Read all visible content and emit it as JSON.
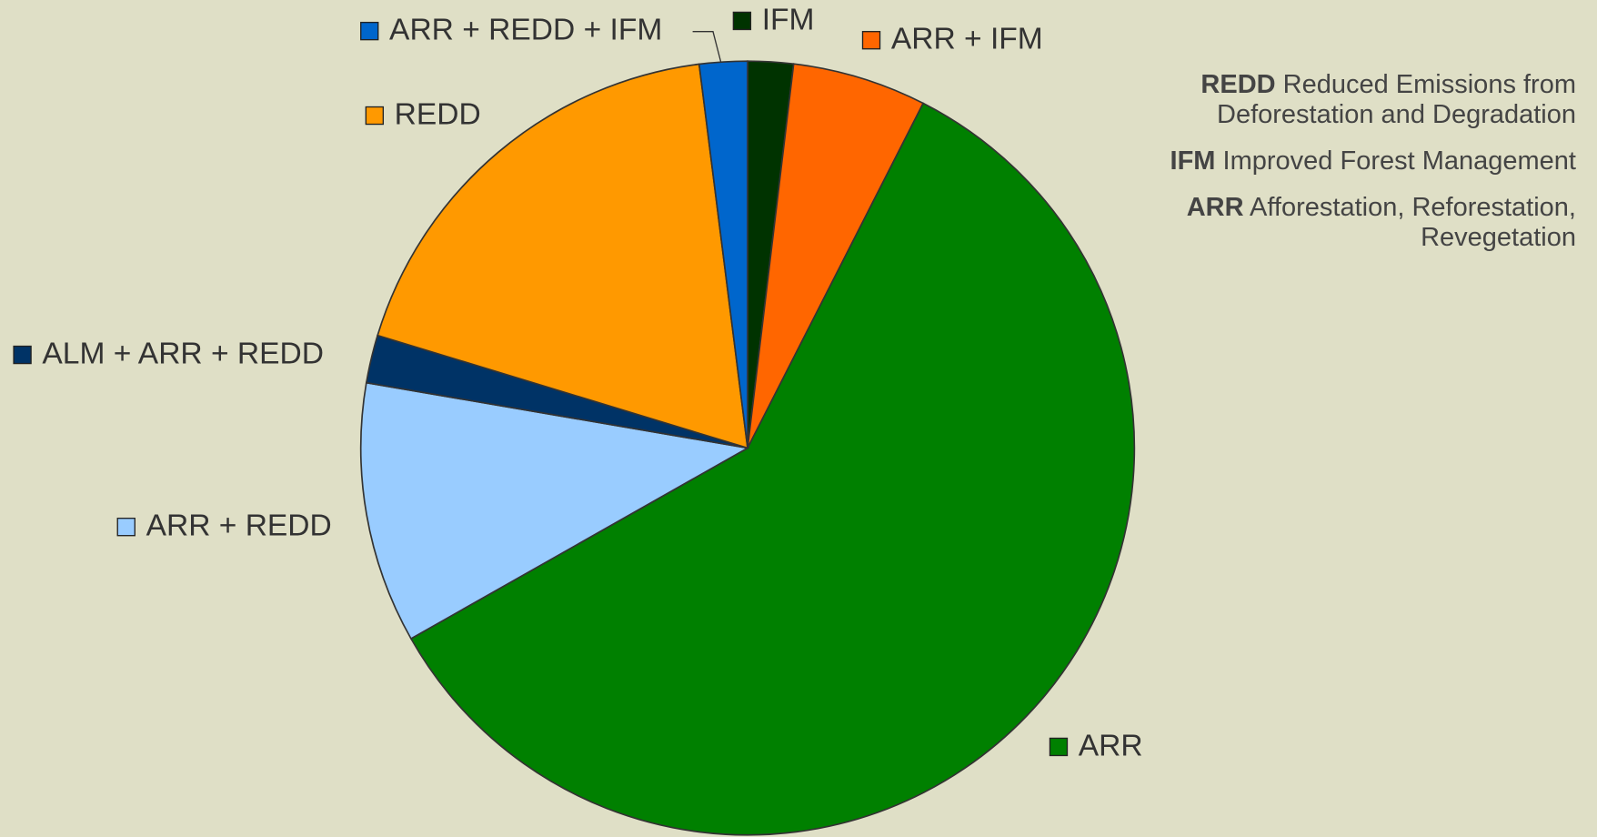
{
  "chart_data": {
    "type": "pie",
    "categories": [
      "IFM",
      "ARR + IFM",
      "ARR",
      "ARR + REDD",
      "ALM + ARR + REDD",
      "REDD",
      "ARR + REDD + IFM"
    ],
    "values": [
      1.9,
      5.6,
      59.3,
      10.9,
      2.0,
      18.3,
      2.0
    ],
    "colors": [
      "#003300",
      "#ff6600",
      "#008000",
      "#99ccff",
      "#003366",
      "#ff9900",
      "#0066cc"
    ]
  },
  "notes": [
    {
      "term": "REDD",
      "text": "Reduced Emissions from Deforestation and Degradation"
    },
    {
      "term": "IFM",
      "text": "Improved Forest Management"
    },
    {
      "term": "ARR",
      "text": "Afforestation, Reforestation, Revegetation"
    }
  ]
}
